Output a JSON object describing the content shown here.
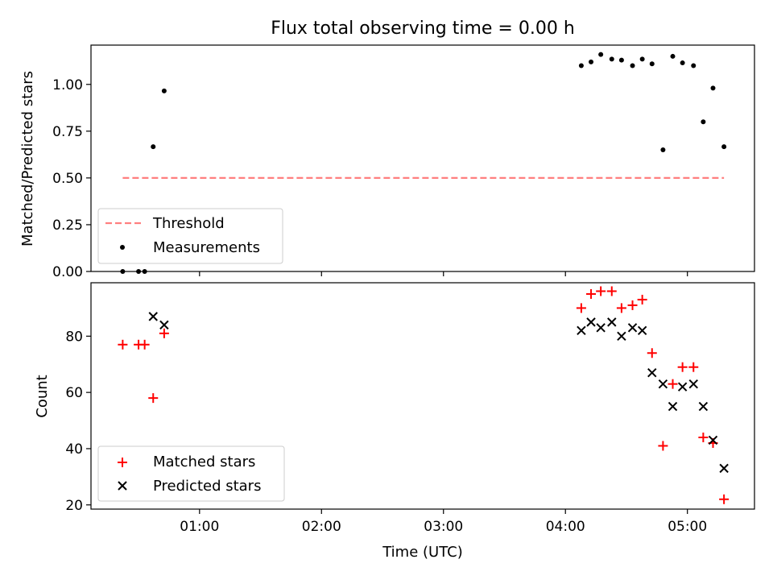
{
  "chart_data": {
    "type": "scatter",
    "title": "Flux total observing time = 0.00 h",
    "xlabel": "Time (UTC)",
    "x_ticks": [
      {
        "label": "01:00",
        "hours": 1.0
      },
      {
        "label": "02:00",
        "hours": 2.0
      },
      {
        "label": "03:00",
        "hours": 3.0
      },
      {
        "label": "04:00",
        "hours": 4.0
      },
      {
        "label": "05:00",
        "hours": 5.0
      }
    ],
    "xlim_hours": [
      0.11,
      5.55
    ],
    "panels": [
      {
        "ylabel": "Matched/Predicted stars",
        "ylim": [
          0,
          1.21
        ],
        "yticks": [
          "0.00",
          "0.25",
          "0.50",
          "0.75",
          "1.00"
        ],
        "legend_placement": "lower-left",
        "series": [
          {
            "name": "Threshold",
            "type": "line",
            "style": "dashed",
            "color": "#ff7f7f",
            "x_hours": [
              0.37,
              5.3
            ],
            "y": [
              0.5,
              0.5
            ]
          },
          {
            "name": "Measurements",
            "type": "scatter",
            "marker": "dot",
            "color": "#000000",
            "x_hours": [
              0.37,
              0.5,
              0.55,
              0.62,
              0.71,
              4.13,
              4.21,
              4.29,
              4.38,
              4.46,
              4.55,
              4.63,
              4.71,
              4.8,
              4.88,
              4.96,
              5.05,
              5.13,
              5.21,
              5.3
            ],
            "y": [
              0.0,
              0.0,
              0.0,
              0.667,
              0.965,
              1.1,
              1.12,
              1.16,
              1.135,
              1.13,
              1.1,
              1.135,
              1.11,
              0.65,
              1.15,
              1.115,
              1.1,
              0.8,
              0.98,
              0.667
            ]
          }
        ]
      },
      {
        "ylabel": "Count",
        "ylim": [
          18.5,
          99
        ],
        "yticks": [
          "20",
          "40",
          "60",
          "80"
        ],
        "legend_placement": "lower-left",
        "series": [
          {
            "name": "Matched stars",
            "type": "scatter",
            "marker": "plus",
            "color": "#ff0000",
            "x_hours": [
              0.37,
              0.5,
              0.55,
              0.62,
              0.71,
              4.13,
              4.21,
              4.29,
              4.38,
              4.46,
              4.55,
              4.63,
              4.71,
              4.8,
              4.88,
              4.96,
              5.05,
              5.13,
              5.21,
              5.3
            ],
            "y": [
              77,
              77,
              77,
              58,
              81,
              90,
              95,
              96,
              96,
              90,
              91,
              93,
              74,
              41,
              63,
              69,
              69,
              44,
              42,
              22
            ]
          },
          {
            "name": "Predicted stars",
            "type": "scatter",
            "marker": "x",
            "color": "#000000",
            "x_hours": [
              0.62,
              0.71,
              4.13,
              4.21,
              4.29,
              4.38,
              4.46,
              4.55,
              4.63,
              4.71,
              4.8,
              4.88,
              4.96,
              5.05,
              5.13,
              5.21,
              5.3
            ],
            "y": [
              87,
              84,
              82,
              85,
              83,
              85,
              80,
              83,
              82,
              67,
              63,
              55,
              62,
              63,
              55,
              43,
              33
            ]
          }
        ]
      }
    ]
  }
}
